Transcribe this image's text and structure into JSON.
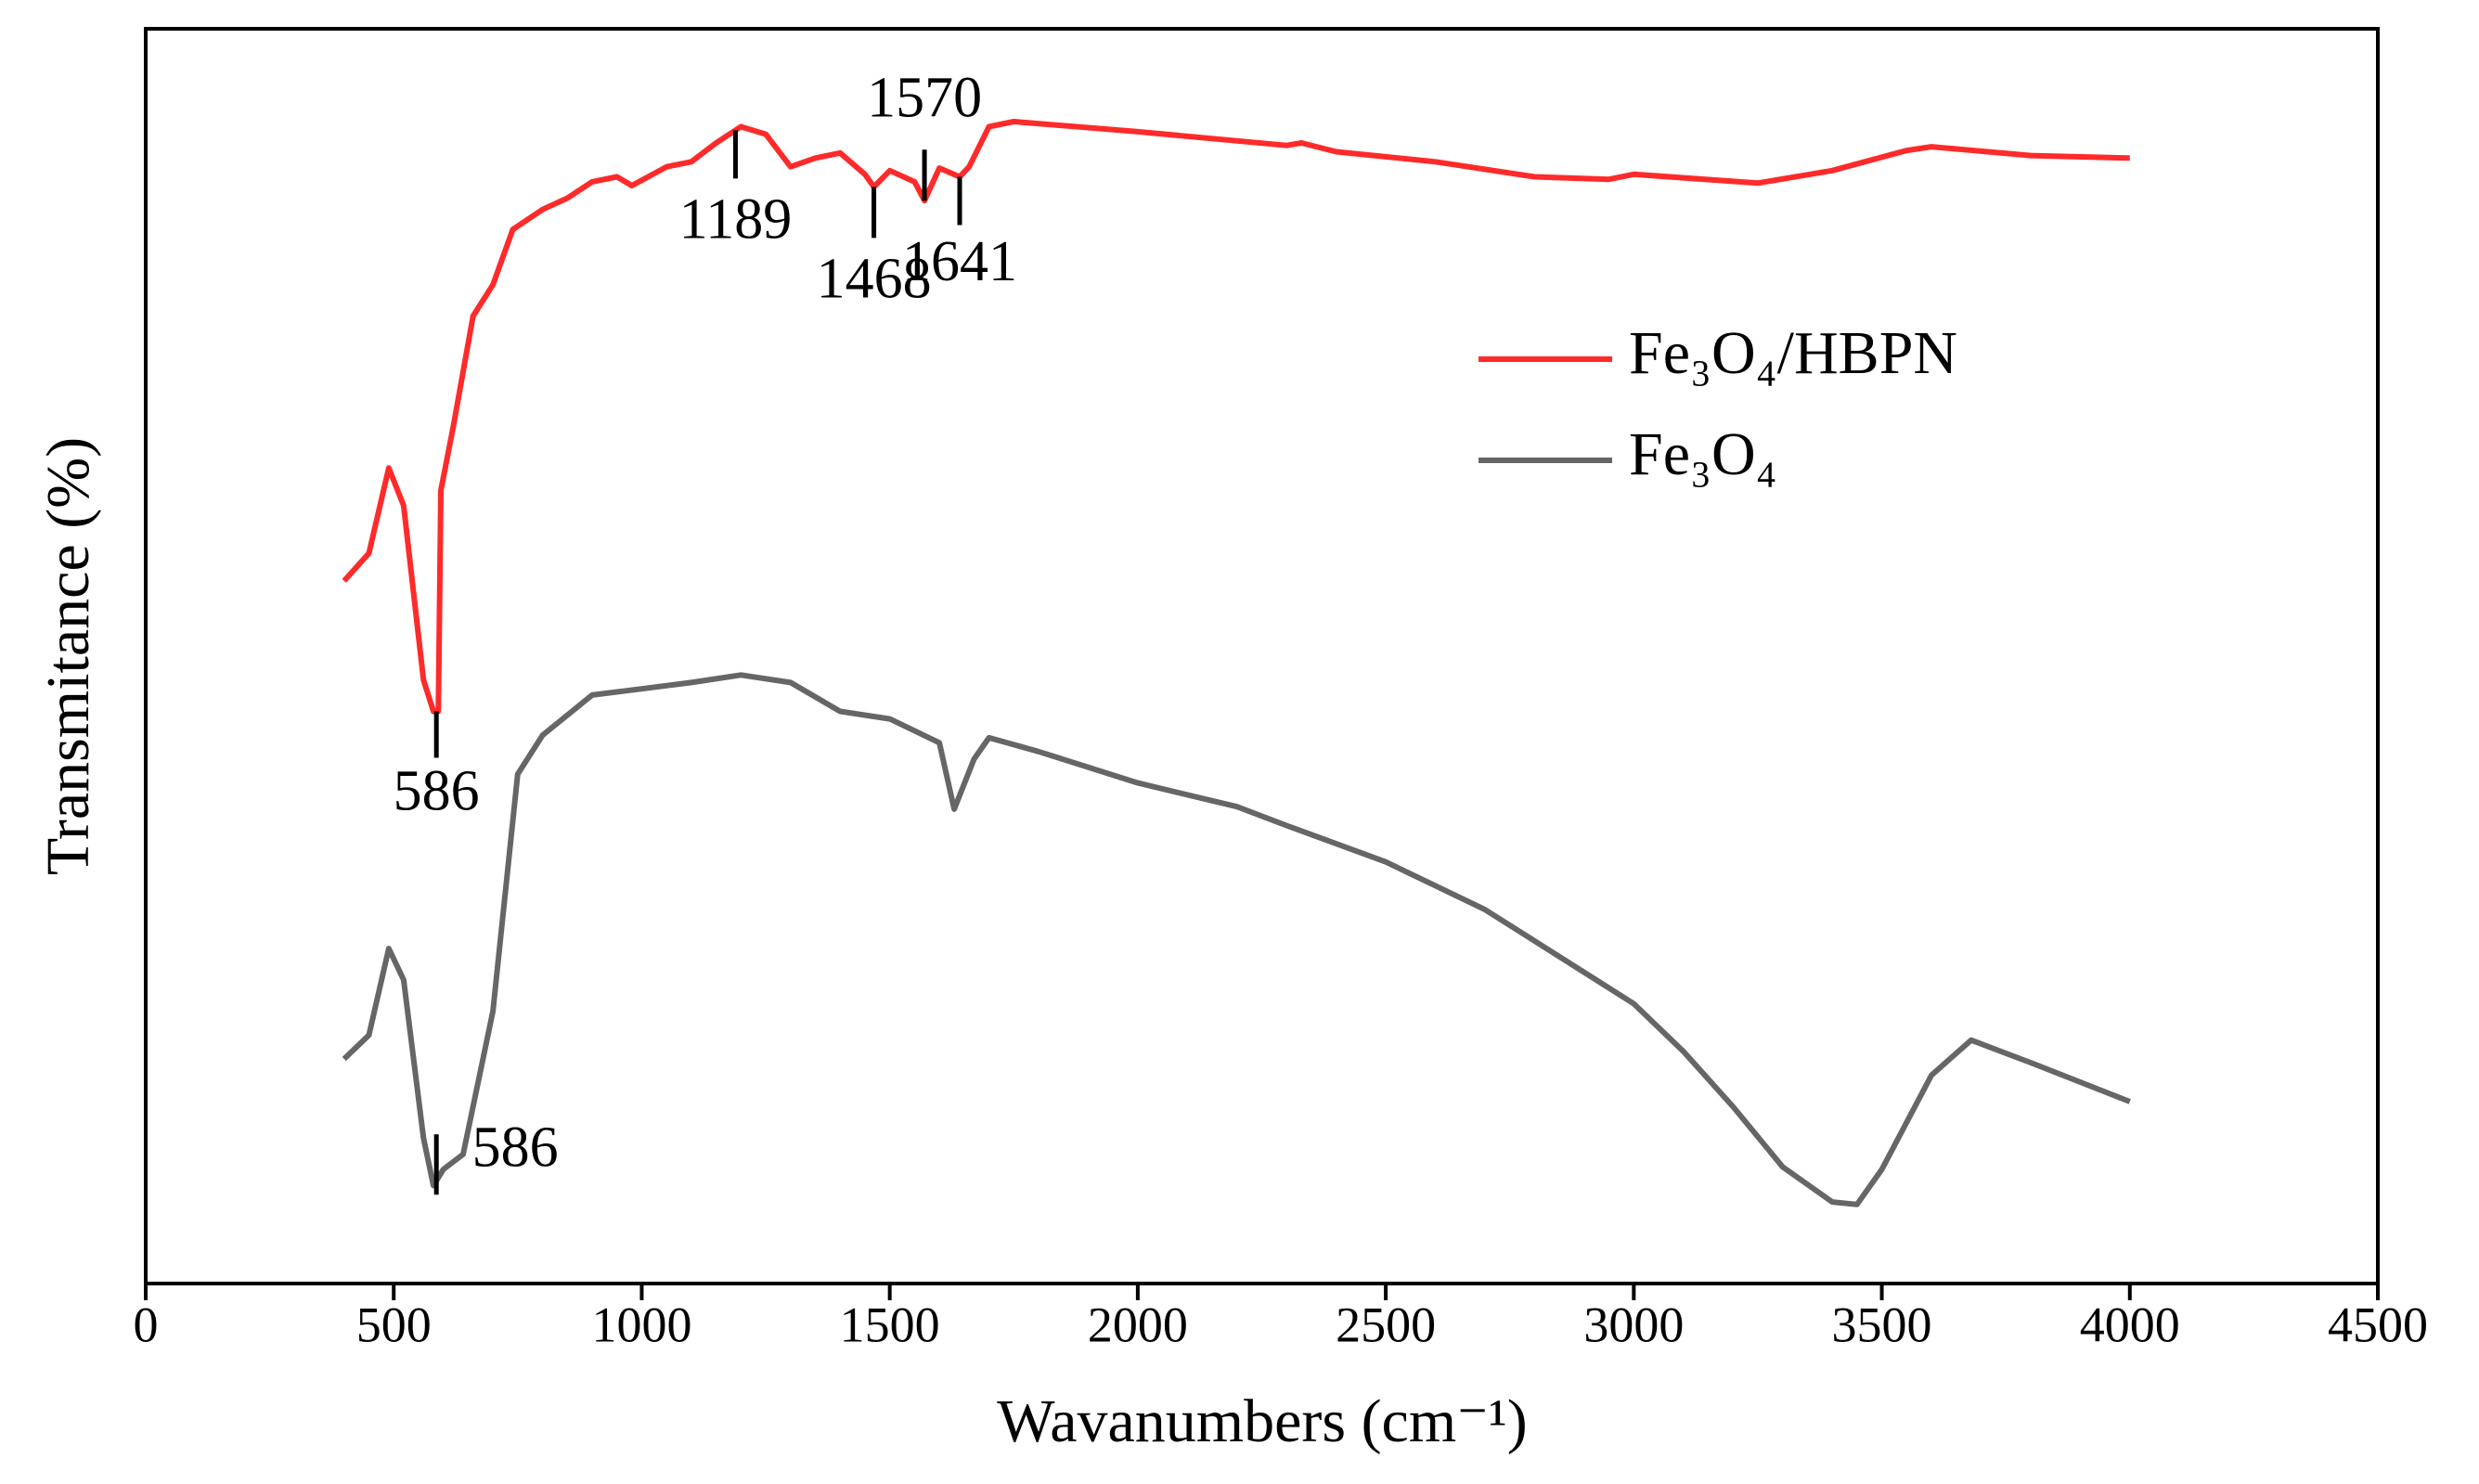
{
  "chart_data": {
    "type": "line",
    "xlabel": "Wavanumbers (cm⁻¹)",
    "ylabel": "Transmitance (%)",
    "xlim": [
      0,
      4500
    ],
    "xticks": [
      0,
      500,
      1000,
      1500,
      2000,
      2500,
      3000,
      3500,
      4000,
      4500
    ],
    "ylim": [
      0,
      100
    ],
    "legend": "center right",
    "series": [
      {
        "name": "Fe₃O₄/HBPN",
        "color": "#ff2a2a",
        "x": [
          400,
          450,
          490,
          520,
          560,
          580,
          590,
          595,
          620,
          660,
          700,
          740,
          800,
          850,
          900,
          950,
          980,
          1050,
          1100,
          1150,
          1200,
          1250,
          1300,
          1350,
          1400,
          1450,
          1468,
          1500,
          1550,
          1570,
          1600,
          1641,
          1660,
          1700,
          1750,
          2000,
          2300,
          2330,
          2400,
          2600,
          2800,
          2950,
          3000,
          3250,
          3400,
          3550,
          3600,
          3800,
          4000
        ],
        "values": [
          56.0,
          58.2,
          65.0,
          62.0,
          48.1,
          45.6,
          45.6,
          63.2,
          68.3,
          77.1,
          79.6,
          84.0,
          85.6,
          86.5,
          87.8,
          88.2,
          87.5,
          89.0,
          89.4,
          90.9,
          92.2,
          91.6,
          89.0,
          89.7,
          90.1,
          88.4,
          87.4,
          88.7,
          87.8,
          86.3,
          88.9,
          88.2,
          89.0,
          92.2,
          92.6,
          91.8,
          90.7,
          90.9,
          90.2,
          89.4,
          88.2,
          88.0,
          88.4,
          87.7,
          88.7,
          90.3,
          90.6,
          89.9,
          89.7
        ],
        "annotations": [
          {
            "value": 586,
            "label": "586"
          },
          {
            "value": 1189,
            "label": "1189"
          },
          {
            "value": 1468,
            "label": "1468"
          },
          {
            "value": 1570,
            "label": "1570"
          },
          {
            "value": 1641,
            "label": "1641"
          }
        ]
      },
      {
        "name": "Fe₃O₄",
        "color": "#666666",
        "x": [
          400,
          450,
          490,
          520,
          560,
          580,
          600,
          640,
          700,
          750,
          800,
          900,
          1000,
          1100,
          1200,
          1300,
          1400,
          1500,
          1600,
          1630,
          1670,
          1700,
          1800,
          2000,
          2200,
          2300,
          2500,
          2700,
          2900,
          3000,
          3100,
          3200,
          3300,
          3400,
          3450,
          3500,
          3600,
          3680,
          3800,
          4000
        ],
        "values": [
          17.9,
          19.8,
          26.7,
          24.2,
          11.6,
          7.8,
          9.1,
          10.3,
          21.7,
          40.6,
          43.7,
          46.9,
          47.4,
          47.9,
          48.5,
          47.9,
          45.6,
          45.0,
          43.1,
          37.8,
          41.8,
          43.5,
          42.4,
          39.9,
          38.0,
          36.5,
          33.6,
          29.8,
          24.8,
          22.3,
          18.5,
          14.1,
          9.3,
          6.5,
          6.3,
          9.1,
          16.6,
          19.4,
          17.6,
          14.5
        ],
        "annotations": [
          {
            "value": 586,
            "label": "586"
          }
        ]
      }
    ]
  }
}
